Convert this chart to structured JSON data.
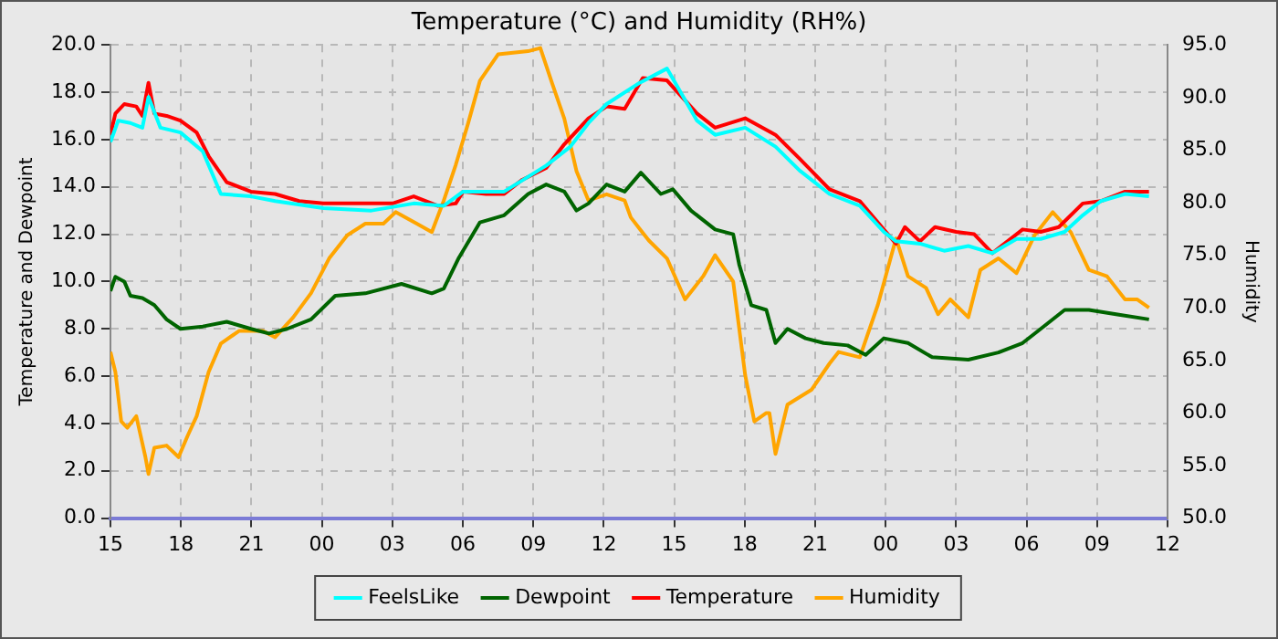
{
  "chart_data": {
    "type": "line",
    "title": "Temperature (°C) and Humidity (RH%)",
    "ylabel": "Temperature and Dewpoint",
    "y2label": "Humidity",
    "xlim": [
      15,
      60
    ],
    "xticks": [
      {
        "value": 15,
        "label": "15"
      },
      {
        "value": 18,
        "label": "18"
      },
      {
        "value": 21,
        "label": "21"
      },
      {
        "value": 24,
        "label": "00"
      },
      {
        "value": 27,
        "label": "03"
      },
      {
        "value": 30,
        "label": "06"
      },
      {
        "value": 33,
        "label": "09"
      },
      {
        "value": 36,
        "label": "12"
      },
      {
        "value": 39,
        "label": "15"
      },
      {
        "value": 42,
        "label": "18"
      },
      {
        "value": 45,
        "label": "21"
      },
      {
        "value": 48,
        "label": "00"
      },
      {
        "value": 51,
        "label": "03"
      },
      {
        "value": 54,
        "label": "06"
      },
      {
        "value": 57,
        "label": "09"
      },
      {
        "value": 60,
        "label": "12"
      }
    ],
    "ylim": [
      0,
      20
    ],
    "yticks": [
      {
        "value": 0,
        "label": "0.0"
      },
      {
        "value": 2,
        "label": "2.0"
      },
      {
        "value": 4,
        "label": "4.0"
      },
      {
        "value": 6,
        "label": "6.0"
      },
      {
        "value": 8,
        "label": "8.0"
      },
      {
        "value": 10,
        "label": "10.0"
      },
      {
        "value": 12,
        "label": "12.0"
      },
      {
        "value": 14,
        "label": "14.0"
      },
      {
        "value": 16,
        "label": "16.0"
      },
      {
        "value": 18,
        "label": "18.0"
      },
      {
        "value": 20,
        "label": "20.0"
      }
    ],
    "y2lim": [
      50,
      95
    ],
    "y2ticks": [
      {
        "value": 50,
        "label": "50.0"
      },
      {
        "value": 55,
        "label": "55.0"
      },
      {
        "value": 60,
        "label": "60.0"
      },
      {
        "value": 65,
        "label": "65.0"
      },
      {
        "value": 70,
        "label": "70.0"
      },
      {
        "value": 75,
        "label": "75.0"
      },
      {
        "value": 80,
        "label": "80.0"
      },
      {
        "value": 85,
        "label": "85.0"
      },
      {
        "value": 90,
        "label": "90.0"
      },
      {
        "value": 95,
        "label": "95.0"
      }
    ],
    "grid": true,
    "legend": "bottom",
    "marker": "none",
    "line_style": "solid",
    "series": [
      {
        "name": "FeelsLike",
        "color": "#00ffff",
        "x": [
          15.0,
          15.33,
          15.85,
          16.36,
          16.62,
          17.13,
          17.98,
          18.93,
          19.7,
          20.98,
          22.01,
          24.06,
          26.11,
          27.91,
          29.19,
          30.01,
          31.76,
          33.55,
          34.58,
          35.35,
          36.12,
          37.53,
          38.69,
          39.97,
          40.74,
          42.02,
          43.31,
          44.33,
          45.61,
          46.9,
          47.92,
          48.44,
          49.46,
          50.49,
          51.52,
          52.54,
          53.57,
          54.6,
          55.62,
          56.39,
          57.16,
          58.19,
          59.21
        ],
        "values": [
          15.9,
          16.8,
          16.7,
          16.5,
          17.8,
          16.5,
          16.3,
          15.5,
          13.7,
          13.6,
          13.4,
          13.1,
          13.0,
          13.3,
          13.2,
          13.8,
          13.8,
          14.9,
          15.7,
          16.7,
          17.5,
          18.4,
          19.0,
          16.8,
          16.2,
          16.5,
          15.7,
          14.7,
          13.7,
          13.2,
          12.1,
          11.7,
          11.6,
          11.3,
          11.5,
          11.2,
          11.8,
          11.8,
          12.1,
          12.8,
          13.4,
          13.7,
          13.6
        ]
      },
      {
        "name": "Dewpoint",
        "color": "#006400",
        "x": [
          15.0,
          15.21,
          15.59,
          15.85,
          16.36,
          16.87,
          17.39,
          17.98,
          18.93,
          19.95,
          20.98,
          21.75,
          22.52,
          23.54,
          24.57,
          25.85,
          27.39,
          28.68,
          29.19,
          29.83,
          30.73,
          31.76,
          32.78,
          33.55,
          34.32,
          34.84,
          35.35,
          36.12,
          36.89,
          37.58,
          38.43,
          38.94,
          39.71,
          40.74,
          41.51,
          41.77,
          42.28,
          42.92,
          43.31,
          43.82,
          44.59,
          45.36,
          46.38,
          47.15,
          47.92,
          48.95,
          49.98,
          51.52,
          52.8,
          53.83,
          54.6,
          55.62,
          56.65,
          57.93,
          59.21
        ],
        "values": [
          9.6,
          10.2,
          10.0,
          9.4,
          9.3,
          9.0,
          8.4,
          8.0,
          8.1,
          8.3,
          8.0,
          7.8,
          8.0,
          8.4,
          9.4,
          9.5,
          9.9,
          9.5,
          9.7,
          11.0,
          12.5,
          12.8,
          13.7,
          14.1,
          13.8,
          13.0,
          13.3,
          14.1,
          13.8,
          14.6,
          13.7,
          13.9,
          13.0,
          12.2,
          12.0,
          10.7,
          9.0,
          8.8,
          7.4,
          8.0,
          7.6,
          7.4,
          7.3,
          6.9,
          7.6,
          7.4,
          6.8,
          6.7,
          7.0,
          7.4,
          8.0,
          8.8,
          8.8,
          8.6,
          8.4
        ]
      },
      {
        "name": "Temperature",
        "color": "#ff0000",
        "x": [
          15.0,
          15.21,
          15.59,
          16.1,
          16.36,
          16.62,
          16.87,
          17.39,
          17.98,
          18.67,
          19.18,
          19.95,
          20.98,
          22.01,
          23.03,
          24.06,
          25.08,
          26.11,
          27.01,
          27.91,
          28.93,
          29.7,
          30.01,
          30.99,
          31.76,
          32.53,
          33.55,
          34.32,
          35.35,
          36.12,
          36.89,
          37.66,
          38.69,
          39.97,
          40.74,
          42.02,
          43.31,
          44.33,
          45.61,
          46.9,
          47.92,
          48.44,
          48.82,
          49.46,
          50.1,
          51.0,
          51.77,
          52.54,
          53.06,
          53.83,
          54.6,
          55.37,
          56.39,
          57.16,
          58.19,
          59.21
        ],
        "values": [
          16.2,
          17.1,
          17.5,
          17.4,
          17.0,
          18.4,
          17.1,
          17.0,
          16.8,
          16.3,
          15.3,
          14.2,
          13.8,
          13.7,
          13.4,
          13.3,
          13.3,
          13.3,
          13.3,
          13.6,
          13.2,
          13.3,
          13.8,
          13.7,
          13.7,
          14.3,
          14.8,
          15.8,
          16.9,
          17.4,
          17.3,
          18.6,
          18.5,
          17.1,
          16.5,
          16.9,
          16.2,
          15.2,
          13.9,
          13.4,
          12.2,
          11.6,
          12.3,
          11.7,
          12.3,
          12.1,
          12.0,
          11.2,
          11.6,
          12.2,
          12.1,
          12.3,
          13.3,
          13.4,
          13.8,
          13.8
        ]
      },
      {
        "name": "Humidity",
        "color": "#ffa500",
        "axis": "y2",
        "x": [
          15.0,
          15.21,
          15.46,
          15.72,
          16.1,
          16.49,
          16.62,
          16.87,
          17.39,
          17.9,
          18.28,
          18.67,
          19.18,
          19.7,
          20.47,
          21.49,
          22.01,
          22.78,
          23.54,
          24.31,
          25.08,
          25.85,
          26.62,
          27.14,
          28.04,
          28.68,
          29.19,
          29.7,
          30.22,
          30.73,
          31.5,
          32.78,
          33.3,
          33.81,
          34.32,
          34.84,
          35.35,
          36.12,
          36.89,
          37.15,
          37.53,
          37.92,
          38.69,
          39.46,
          40.23,
          40.74,
          41.51,
          42.02,
          42.41,
          42.92,
          43.05,
          43.31,
          43.82,
          44.84,
          45.61,
          46.0,
          46.9,
          47.67,
          48.44,
          48.95,
          49.72,
          50.23,
          50.75,
          51.52,
          52.03,
          52.8,
          53.57,
          54.34,
          55.11,
          55.88,
          56.65,
          57.42,
          58.19,
          58.7,
          59.21
        ],
        "values": [
          65.8,
          63.9,
          59.2,
          58.6,
          59.7,
          55.8,
          54.2,
          56.7,
          56.9,
          55.8,
          57.8,
          59.7,
          63.9,
          66.6,
          67.8,
          67.8,
          67.2,
          69.1,
          71.4,
          74.7,
          76.9,
          78.0,
          78.0,
          79.1,
          78.0,
          77.2,
          80.2,
          83.6,
          87.5,
          91.6,
          94.1,
          94.4,
          94.7,
          91.3,
          88.0,
          83.0,
          80.2,
          80.8,
          80.2,
          78.6,
          77.5,
          76.4,
          74.7,
          70.8,
          73.0,
          75.0,
          72.5,
          63.6,
          59.2,
          60.0,
          60.0,
          56.1,
          60.8,
          62.2,
          64.7,
          65.8,
          65.3,
          70.3,
          76.6,
          73.0,
          71.9,
          69.4,
          70.8,
          69.1,
          73.6,
          74.7,
          73.3,
          76.9,
          79.1,
          77.2,
          73.6,
          73.0,
          70.8,
          70.8,
          70.0
        ]
      }
    ]
  }
}
